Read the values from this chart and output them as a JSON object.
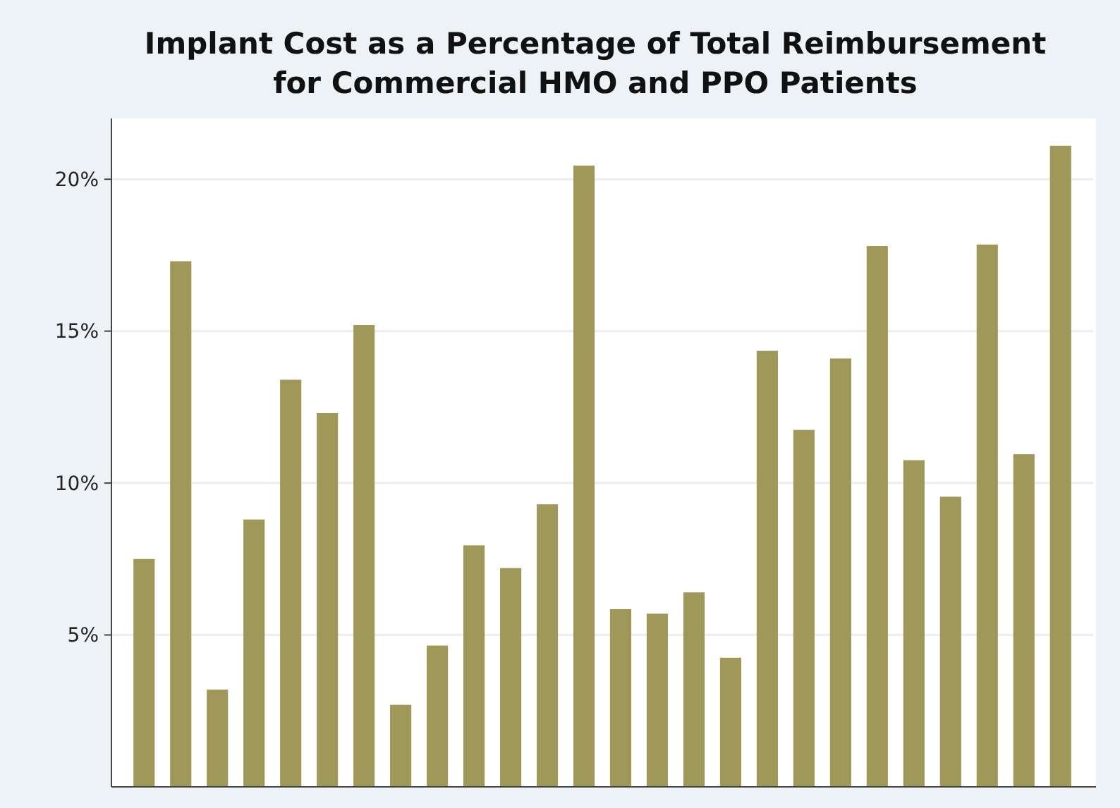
{
  "chart_data": {
    "type": "bar",
    "title": "Implant Cost as a Percentage of Total Reimbursement for Commercial HMO and PPO Patients",
    "categories": [
      null,
      null,
      null,
      null,
      null,
      null,
      null,
      null,
      null,
      null,
      null,
      null,
      null,
      null,
      null,
      null,
      null,
      null,
      null,
      null,
      null,
      null,
      null,
      null,
      null,
      null
    ],
    "values": [
      7.5,
      17.3,
      3.2,
      8.8,
      13.4,
      12.3,
      15.2,
      2.7,
      4.65,
      7.95,
      7.2,
      9.3,
      20.45,
      5.85,
      5.7,
      6.4,
      4.25,
      14.35,
      11.75,
      14.1,
      17.8,
      10.75,
      9.55,
      17.85,
      10.95,
      21.1
    ],
    "color": "#a09858",
    "ylim": [
      0,
      22
    ],
    "yticks": [
      {
        "value": 5,
        "label": "5%"
      },
      {
        "value": 10,
        "label": "10%"
      },
      {
        "value": 15,
        "label": "15%"
      },
      {
        "value": 20,
        "label": "20%"
      }
    ],
    "grid": "y"
  }
}
